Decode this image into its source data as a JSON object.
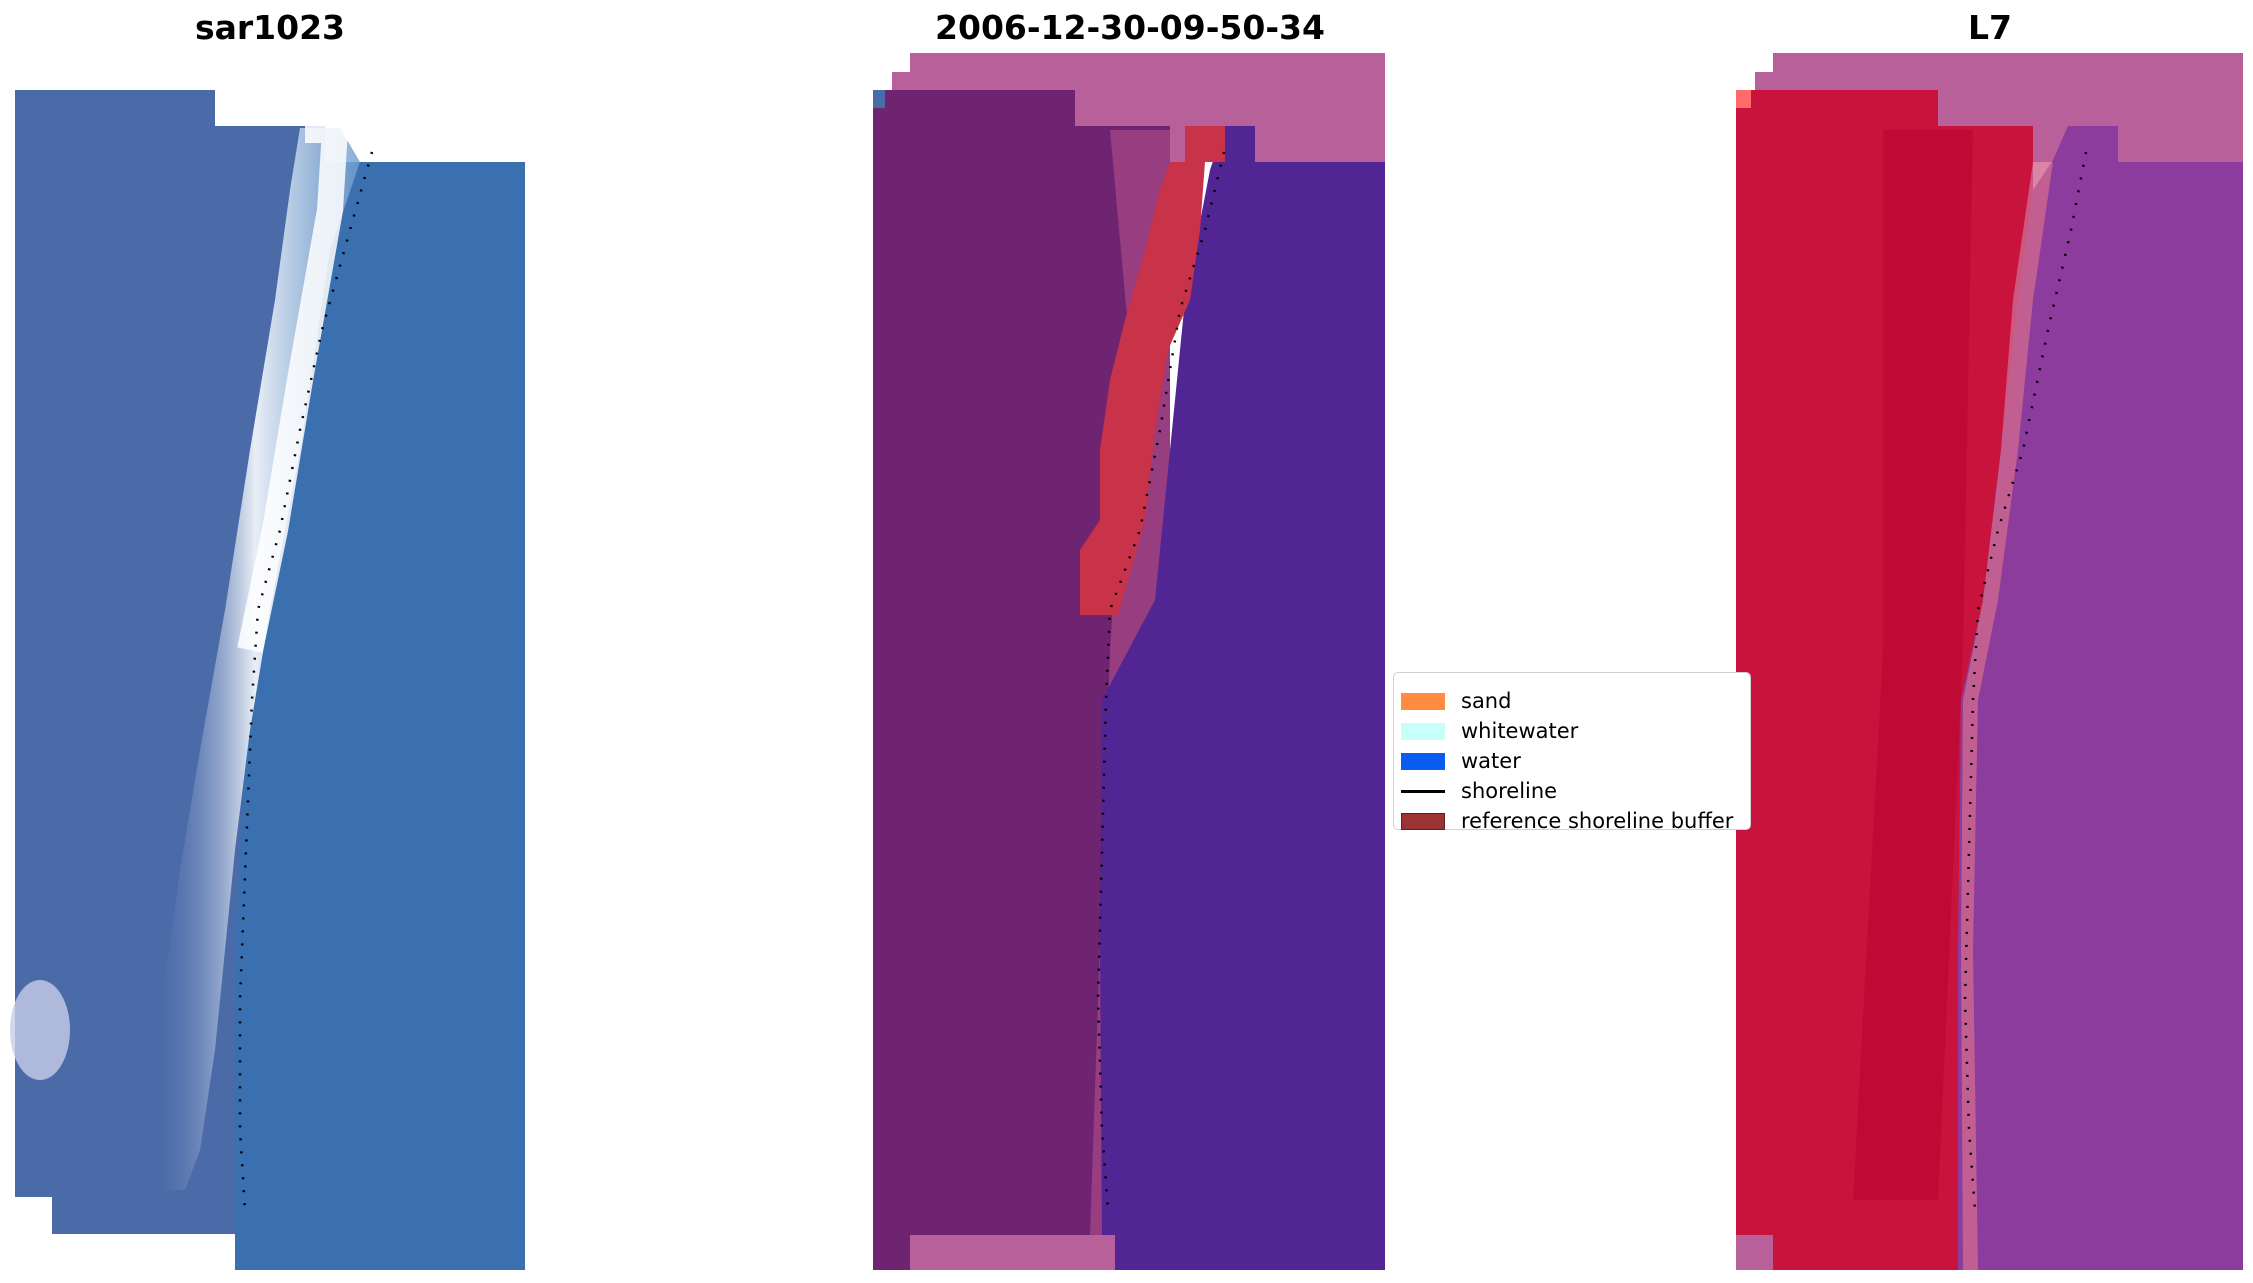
{
  "panels": [
    {
      "title": "sar1023"
    },
    {
      "title": "2006-12-30-09-50-34"
    },
    {
      "title": "L7"
    }
  ],
  "legend": {
    "items": [
      {
        "label": "sand",
        "color": "#ff8c42",
        "kind": "patch"
      },
      {
        "label": "whitewater",
        "color": "#c8fff8",
        "kind": "patch"
      },
      {
        "label": "water",
        "color": "#0a5cf0",
        "kind": "patch"
      },
      {
        "label": "shoreline",
        "color": "#000000",
        "kind": "line"
      },
      {
        "label": "reference shoreline buffer",
        "color": "#9a3434",
        "kind": "patch"
      }
    ]
  },
  "colors": {
    "rgb_sand": "#4a6aa8",
    "rgb_beach": "#dfe6f2",
    "rgb_water": "#3a70b0",
    "class_land": "#6e2470",
    "class_buffer": "#c8334a",
    "class_water": "#522595",
    "class_nodata": "#b8609a",
    "ndwi_land": "#c8143c",
    "ndwi_water": "#8c3c9c",
    "ndwi_nodata": "#b8609a"
  }
}
